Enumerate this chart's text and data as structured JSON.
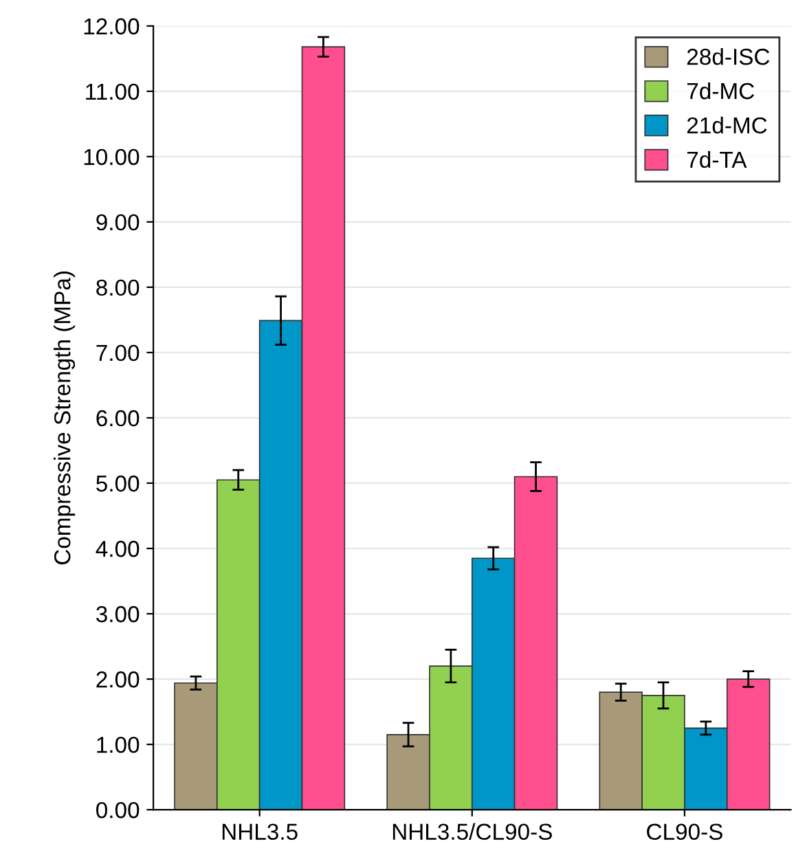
{
  "chart_data": {
    "type": "bar",
    "ylabel": "Compressive Strength (MPa)",
    "categories": [
      "NHL3.5",
      "NHL3.5/CL90-S",
      "CL90-S"
    ],
    "series": [
      {
        "name": "28d-ISC",
        "color": "#a89a78",
        "values": [
          1.94,
          1.15,
          1.8
        ],
        "errors": [
          0.1,
          0.18,
          0.13
        ]
      },
      {
        "name": "7d-MC",
        "color": "#92d050",
        "values": [
          5.05,
          2.2,
          1.75
        ],
        "errors": [
          0.15,
          0.25,
          0.2
        ]
      },
      {
        "name": "21d-MC",
        "color": "#0096c8",
        "values": [
          7.49,
          3.85,
          1.25
        ],
        "errors": [
          0.37,
          0.17,
          0.1
        ]
      },
      {
        "name": "7d-TA",
        "color": "#ff4f8f",
        "values": [
          11.68,
          5.1,
          2.0
        ],
        "errors": [
          0.15,
          0.22,
          0.12
        ]
      }
    ],
    "ylim": [
      0,
      12
    ],
    "yticks": [
      {
        "value": 0,
        "label": "0.00"
      },
      {
        "value": 1,
        "label": "1.00"
      },
      {
        "value": 2,
        "label": "2.00"
      },
      {
        "value": 3,
        "label": "3.00"
      },
      {
        "value": 4,
        "label": "4.00"
      },
      {
        "value": 5,
        "label": "5.00"
      },
      {
        "value": 6,
        "label": "6.00"
      },
      {
        "value": 7,
        "label": "7.00"
      },
      {
        "value": 8,
        "label": "8.00"
      },
      {
        "value": 9,
        "label": "9.00"
      },
      {
        "value": 10,
        "label": "10.00"
      },
      {
        "value": 11,
        "label": "11.00"
      },
      {
        "value": 12,
        "label": "12.00"
      }
    ],
    "grid": "y",
    "legend": "top right"
  }
}
